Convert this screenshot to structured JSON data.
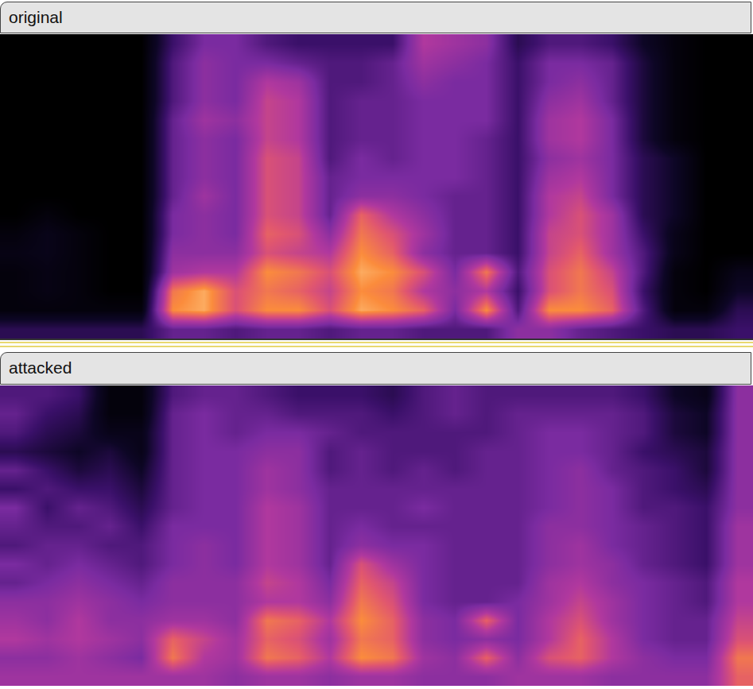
{
  "chart_data": [
    {
      "type": "heatmap",
      "title": "original",
      "tick_labels": false,
      "zlim": [
        0,
        1
      ],
      "cells": [
        [
          0,
          0,
          0,
          0,
          0,
          0,
          0,
          0,
          0,
          0,
          0.05,
          0.08,
          0.05,
          0.05,
          0.05,
          0.25
        ],
        [
          0,
          0,
          0,
          0,
          0,
          0,
          0,
          0,
          0,
          0.05,
          0.1,
          0.1,
          0.08,
          0.08,
          0.05,
          0.25
        ],
        [
          0,
          0,
          0,
          0,
          0,
          0,
          0,
          0,
          0,
          0,
          0.05,
          0.05,
          0.05,
          0.05,
          0.05,
          0.25
        ],
        [
          0,
          0,
          0,
          0,
          0,
          0,
          0,
          0,
          0,
          0,
          0,
          0,
          0,
          0,
          0.05,
          0.25
        ],
        [
          0,
          0,
          0,
          0,
          0,
          0,
          0,
          0,
          0,
          0,
          0,
          0,
          0,
          0,
          0.05,
          0.25
        ],
        [
          0.3,
          0.35,
          0.35,
          0.35,
          0.4,
          0.4,
          0.4,
          0.4,
          0.4,
          0.45,
          0.45,
          0.5,
          0.55,
          0.8,
          0.85,
          0.4
        ],
        [
          0.45,
          0.5,
          0.5,
          0.5,
          0.55,
          0.5,
          0.5,
          0.5,
          0.55,
          0.5,
          0.5,
          0.5,
          0.6,
          0.9,
          0.9,
          0.4
        ],
        [
          0.45,
          0.45,
          0.45,
          0.45,
          0.5,
          0.45,
          0.45,
          0.45,
          0.45,
          0.45,
          0.45,
          0.5,
          0.6,
          0.7,
          0.7,
          0.35
        ],
        [
          0.35,
          0.45,
          0.6,
          0.65,
          0.65,
          0.65,
          0.7,
          0.7,
          0.7,
          0.7,
          0.75,
          0.7,
          0.85,
          0.8,
          0.85,
          0.4
        ],
        [
          0.3,
          0.4,
          0.55,
          0.6,
          0.6,
          0.6,
          0.65,
          0.65,
          0.65,
          0.65,
          0.7,
          0.65,
          0.8,
          0.75,
          0.85,
          0.4
        ],
        [
          0.3,
          0.35,
          0.35,
          0.35,
          0.35,
          0.35,
          0.35,
          0.4,
          0.4,
          0.4,
          0.5,
          0.6,
          0.7,
          0.65,
          0.7,
          0.35
        ],
        [
          0.3,
          0.35,
          0.35,
          0.4,
          0.4,
          0.4,
          0.45,
          0.45,
          0.5,
          0.75,
          0.8,
          0.85,
          0.9,
          0.85,
          0.9,
          0.4
        ],
        [
          0.3,
          0.4,
          0.4,
          0.4,
          0.4,
          0.4,
          0.4,
          0.45,
          0.5,
          0.6,
          0.7,
          0.75,
          0.85,
          0.8,
          0.85,
          0.4
        ],
        [
          0.6,
          0.55,
          0.5,
          0.45,
          0.45,
          0.45,
          0.45,
          0.45,
          0.45,
          0.5,
          0.55,
          0.5,
          0.7,
          0.6,
          0.75,
          0.35
        ],
        [
          0.55,
          0.5,
          0.45,
          0.45,
          0.45,
          0.45,
          0.45,
          0.45,
          0.4,
          0.4,
          0.4,
          0.4,
          0.45,
          0.5,
          0.45,
          0.35
        ],
        [
          0.5,
          0.45,
          0.45,
          0.45,
          0.45,
          0.4,
          0.4,
          0.4,
          0.4,
          0.4,
          0.4,
          0.4,
          0.8,
          0.6,
          0.85,
          0.35
        ],
        [
          0.25,
          0.3,
          0.3,
          0.3,
          0.3,
          0.3,
          0.3,
          0.3,
          0.3,
          0.3,
          0.3,
          0.3,
          0.35,
          0.3,
          0.35,
          0.5
        ],
        [
          0.35,
          0.45,
          0.45,
          0.5,
          0.55,
          0.55,
          0.5,
          0.55,
          0.6,
          0.6,
          0.65,
          0.65,
          0.7,
          0.7,
          0.85,
          0.5
        ],
        [
          0.35,
          0.45,
          0.5,
          0.55,
          0.6,
          0.6,
          0.55,
          0.6,
          0.65,
          0.7,
          0.7,
          0.75,
          0.8,
          0.8,
          0.85,
          0.4
        ],
        [
          0.3,
          0.4,
          0.4,
          0.4,
          0.45,
          0.45,
          0.45,
          0.45,
          0.45,
          0.55,
          0.55,
          0.55,
          0.65,
          0.7,
          0.75,
          0.35
        ],
        [
          0.15,
          0.2,
          0.2,
          0.2,
          0.2,
          0.2,
          0.25,
          0.25,
          0.25,
          0.25,
          0.3,
          0.35,
          0.35,
          0.3,
          0.35,
          0.3
        ],
        [
          0.05,
          0.05,
          0.05,
          0.05,
          0.05,
          0.05,
          0.15,
          0.15,
          0.15,
          0.15,
          0.1,
          0.1,
          0.05,
          0.05,
          0.05,
          0.25
        ],
        [
          0,
          0,
          0,
          0,
          0,
          0,
          0,
          0,
          0,
          0,
          0,
          0,
          0,
          0,
          0.05,
          0.25
        ],
        [
          0,
          0,
          0,
          0,
          0,
          0,
          0,
          0,
          0,
          0,
          0,
          0,
          0.1,
          0.15,
          0.25,
          0.3
        ]
      ]
    },
    {
      "type": "heatmap",
      "title": "attacked",
      "tick_labels": false,
      "zlim": [
        0,
        1
      ],
      "cells": [
        [
          0.35,
          0.4,
          0.35,
          0.25,
          0.4,
          0.3,
          0.45,
          0.4,
          0.35,
          0.45,
          0.4,
          0.5,
          0.55,
          0.6,
          0.5,
          0.55
        ],
        [
          0.35,
          0.3,
          0.25,
          0.2,
          0.3,
          0.35,
          0.3,
          0.35,
          0.4,
          0.4,
          0.45,
          0.5,
          0.5,
          0.55,
          0.5,
          0.55
        ],
        [
          0.3,
          0.25,
          0.2,
          0.15,
          0.2,
          0.3,
          0.4,
          0.35,
          0.4,
          0.45,
          0.5,
          0.55,
          0.6,
          0.6,
          0.55,
          0.55
        ],
        [
          0.05,
          0.05,
          0.1,
          0.2,
          0.25,
          0.3,
          0.35,
          0.4,
          0.35,
          0.4,
          0.45,
          0.5,
          0.5,
          0.55,
          0.5,
          0.55
        ],
        [
          0.05,
          0.05,
          0.1,
          0.1,
          0.15,
          0.2,
          0.25,
          0.3,
          0.35,
          0.35,
          0.4,
          0.45,
          0.5,
          0.5,
          0.45,
          0.55
        ],
        [
          0.35,
          0.4,
          0.4,
          0.4,
          0.4,
          0.4,
          0.4,
          0.45,
          0.45,
          0.45,
          0.5,
          0.5,
          0.55,
          0.75,
          0.8,
          0.55
        ],
        [
          0.4,
          0.45,
          0.45,
          0.45,
          0.45,
          0.45,
          0.45,
          0.45,
          0.5,
          0.5,
          0.5,
          0.5,
          0.55,
          0.65,
          0.6,
          0.55
        ],
        [
          0.4,
          0.4,
          0.4,
          0.45,
          0.45,
          0.45,
          0.45,
          0.45,
          0.45,
          0.45,
          0.5,
          0.5,
          0.5,
          0.55,
          0.55,
          0.5
        ],
        [
          0.35,
          0.4,
          0.45,
          0.5,
          0.55,
          0.55,
          0.6,
          0.6,
          0.6,
          0.6,
          0.65,
          0.6,
          0.8,
          0.75,
          0.8,
          0.55
        ],
        [
          0.3,
          0.35,
          0.45,
          0.5,
          0.5,
          0.5,
          0.55,
          0.55,
          0.55,
          0.55,
          0.6,
          0.6,
          0.75,
          0.7,
          0.75,
          0.55
        ],
        [
          0.3,
          0.35,
          0.4,
          0.35,
          0.35,
          0.4,
          0.4,
          0.4,
          0.4,
          0.4,
          0.45,
          0.5,
          0.6,
          0.55,
          0.6,
          0.5
        ],
        [
          0.3,
          0.35,
          0.35,
          0.4,
          0.4,
          0.4,
          0.4,
          0.45,
          0.5,
          0.7,
          0.75,
          0.8,
          0.85,
          0.8,
          0.85,
          0.55
        ],
        [
          0.25,
          0.3,
          0.35,
          0.35,
          0.35,
          0.4,
          0.4,
          0.4,
          0.45,
          0.55,
          0.65,
          0.7,
          0.75,
          0.75,
          0.8,
          0.55
        ],
        [
          0.35,
          0.35,
          0.35,
          0.35,
          0.4,
          0.4,
          0.45,
          0.4,
          0.45,
          0.45,
          0.45,
          0.45,
          0.5,
          0.5,
          0.55,
          0.5
        ],
        [
          0.4,
          0.4,
          0.35,
          0.35,
          0.35,
          0.4,
          0.4,
          0.4,
          0.4,
          0.4,
          0.4,
          0.4,
          0.45,
          0.45,
          0.5,
          0.5
        ],
        [
          0.35,
          0.35,
          0.35,
          0.4,
          0.4,
          0.4,
          0.4,
          0.4,
          0.4,
          0.4,
          0.4,
          0.4,
          0.75,
          0.5,
          0.75,
          0.5
        ],
        [
          0.35,
          0.4,
          0.4,
          0.4,
          0.4,
          0.4,
          0.4,
          0.4,
          0.4,
          0.4,
          0.4,
          0.45,
          0.45,
          0.45,
          0.5,
          0.55
        ],
        [
          0.35,
          0.4,
          0.45,
          0.45,
          0.45,
          0.45,
          0.45,
          0.5,
          0.5,
          0.5,
          0.55,
          0.55,
          0.6,
          0.6,
          0.7,
          0.55
        ],
        [
          0.35,
          0.4,
          0.45,
          0.45,
          0.5,
          0.5,
          0.5,
          0.5,
          0.55,
          0.55,
          0.6,
          0.65,
          0.7,
          0.75,
          0.75,
          0.55
        ],
        [
          0.35,
          0.4,
          0.4,
          0.4,
          0.4,
          0.45,
          0.45,
          0.45,
          0.45,
          0.5,
          0.5,
          0.55,
          0.55,
          0.6,
          0.6,
          0.5
        ],
        [
          0.3,
          0.35,
          0.35,
          0.3,
          0.35,
          0.35,
          0.35,
          0.4,
          0.4,
          0.4,
          0.45,
          0.45,
          0.45,
          0.45,
          0.5,
          0.5
        ],
        [
          0.15,
          0.2,
          0.2,
          0.25,
          0.3,
          0.3,
          0.35,
          0.35,
          0.35,
          0.35,
          0.4,
          0.4,
          0.4,
          0.4,
          0.45,
          0.5
        ],
        [
          0.1,
          0.15,
          0.15,
          0.2,
          0.2,
          0.25,
          0.3,
          0.3,
          0.3,
          0.3,
          0.35,
          0.35,
          0.4,
          0.4,
          0.45,
          0.5
        ],
        [
          0.5,
          0.5,
          0.5,
          0.5,
          0.5,
          0.5,
          0.5,
          0.55,
          0.55,
          0.55,
          0.6,
          0.6,
          0.65,
          0.7,
          0.8,
          0.75
        ]
      ]
    }
  ]
}
